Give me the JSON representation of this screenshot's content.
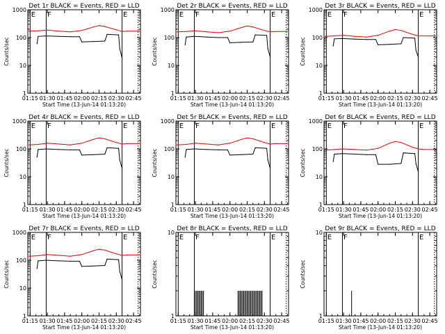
{
  "chart_data": [
    {
      "title": "Det 1r BLACK = Events, RED = LLD",
      "type": "line",
      "xlabel": "Start Time (13-Jun-14 01:13:20)",
      "ylabel": "Counts/sec",
      "y_log": true,
      "ylim": [
        1,
        1000
      ],
      "x_ticks": [
        "01:15",
        "01:30",
        "01:45",
        "02:00",
        "02:15",
        "02:30",
        "02:45"
      ],
      "y_ticks": [
        "1",
        "10",
        "100",
        "1000"
      ],
      "markers": [
        {
          "label": "E",
          "time": "01:15"
        },
        {
          "label": "F",
          "time": "01:29"
        },
        {
          "label": "E",
          "time": "02:35"
        }
      ],
      "dotted_time": "02:49",
      "series": [
        {
          "name": "Events",
          "color": "#000000",
          "x": [
            "01:21",
            "01:22",
            "01:29",
            "01:40",
            "01:50",
            "01:58",
            "02:00",
            "02:10",
            "02:20",
            "02:22",
            "02:32",
            "02:33",
            "02:35"
          ],
          "y": [
            60,
            110,
            115,
            110,
            108,
            108,
            70,
            72,
            75,
            130,
            125,
            40,
            18
          ]
        },
        {
          "name": "LLD",
          "color": "#e00000",
          "x": [
            "01:14",
            "01:22",
            "01:30",
            "01:40",
            "01:50",
            "02:00",
            "02:10",
            "02:15",
            "02:20",
            "02:30",
            "02:35",
            "02:40",
            "02:50"
          ],
          "y": [
            170,
            175,
            185,
            170,
            160,
            180,
            240,
            270,
            250,
            190,
            165,
            170,
            170
          ]
        }
      ]
    },
    {
      "title": "Det 2r BLACK = Events, RED = LLD",
      "type": "line",
      "xlabel": "Start Time (13-Jun-14 01:13:20)",
      "ylabel": "Counts/sec",
      "y_log": true,
      "ylim": [
        1,
        1000
      ],
      "x_ticks": [
        "01:15",
        "01:30",
        "01:45",
        "02:00",
        "02:15",
        "02:30",
        "02:45"
      ],
      "y_ticks": [
        "1",
        "10",
        "100",
        "1000"
      ],
      "markers": [
        {
          "label": "E",
          "time": "01:15"
        },
        {
          "label": "F",
          "time": "01:29"
        },
        {
          "label": "E",
          "time": "02:35"
        }
      ],
      "dotted_time": "02:49",
      "series": [
        {
          "name": "Events",
          "color": "#000000",
          "x": [
            "01:21",
            "01:22",
            "01:29",
            "01:40",
            "01:50",
            "01:58",
            "02:00",
            "02:10",
            "02:20",
            "02:22",
            "02:32",
            "02:33",
            "02:35"
          ],
          "y": [
            55,
            105,
            110,
            105,
            100,
            100,
            65,
            68,
            70,
            125,
            120,
            40,
            20
          ]
        },
        {
          "name": "LLD",
          "color": "#e00000",
          "x": [
            "01:14",
            "01:22",
            "01:30",
            "01:40",
            "01:50",
            "02:00",
            "02:10",
            "02:15",
            "02:20",
            "02:30",
            "02:35",
            "02:40",
            "02:50"
          ],
          "y": [
            160,
            165,
            175,
            160,
            150,
            170,
            230,
            260,
            240,
            180,
            160,
            165,
            165
          ]
        }
      ]
    },
    {
      "title": "Det 3r BLACK = Events, RED = LLD",
      "type": "line",
      "xlabel": "Start Time (13-Jun-14 01:13:20)",
      "ylabel": "Counts/sec",
      "y_log": true,
      "ylim": [
        1,
        1000
      ],
      "x_ticks": [
        "01:15",
        "01:30",
        "01:45",
        "02:00",
        "02:15",
        "02:30",
        "02:45"
      ],
      "y_ticks": [
        "1",
        "10",
        "100",
        "1000"
      ],
      "markers": [
        {
          "label": "E",
          "time": "01:15"
        },
        {
          "label": "F",
          "time": "01:29"
        },
        {
          "label": "E",
          "time": "02:35"
        }
      ],
      "dotted_time": "02:49",
      "series": [
        {
          "name": "Events",
          "color": "#000000",
          "x": [
            "01:21",
            "01:22",
            "01:29",
            "01:40",
            "01:50",
            "01:58",
            "02:00",
            "02:10",
            "02:20",
            "02:22",
            "02:32",
            "02:33",
            "02:35"
          ],
          "y": [
            50,
            90,
            92,
            88,
            85,
            85,
            55,
            57,
            60,
            100,
            95,
            35,
            20
          ]
        },
        {
          "name": "LLD",
          "color": "#e00000",
          "x": [
            "01:14",
            "01:22",
            "01:30",
            "01:40",
            "01:50",
            "02:00",
            "02:10",
            "02:15",
            "02:20",
            "02:30",
            "02:35",
            "02:40",
            "02:50"
          ],
          "y": [
            110,
            115,
            120,
            110,
            105,
            120,
            170,
            195,
            180,
            130,
            115,
            115,
            115
          ]
        }
      ]
    },
    {
      "title": "Det 4r BLACK = Events, RED = LLD",
      "type": "line",
      "xlabel": "Start Time (13-Jun-14 01:13:20)",
      "ylabel": "Counts/sec",
      "y_log": true,
      "ylim": [
        1,
        1000
      ],
      "x_ticks": [
        "01:15",
        "01:30",
        "01:45",
        "02:00",
        "02:15",
        "02:30",
        "02:45"
      ],
      "y_ticks": [
        "1",
        "10",
        "100",
        "1000"
      ],
      "markers": [
        {
          "label": "E",
          "time": "01:15"
        },
        {
          "label": "F",
          "time": "01:29"
        },
        {
          "label": "E",
          "time": "02:35"
        }
      ],
      "dotted_time": "02:49",
      "series": [
        {
          "name": "Events",
          "color": "#000000",
          "x": [
            "01:21",
            "01:22",
            "01:29",
            "01:40",
            "01:50",
            "01:58",
            "02:00",
            "02:10",
            "02:20",
            "02:22",
            "02:32",
            "02:33",
            "02:35"
          ],
          "y": [
            50,
            95,
            100,
            95,
            92,
            92,
            60,
            62,
            65,
            110,
            105,
            40,
            20
          ]
        },
        {
          "name": "LLD",
          "color": "#e00000",
          "x": [
            "01:14",
            "01:22",
            "01:30",
            "01:40",
            "01:50",
            "02:00",
            "02:10",
            "02:15",
            "02:20",
            "02:30",
            "02:35",
            "02:40",
            "02:50"
          ],
          "y": [
            140,
            145,
            160,
            150,
            140,
            160,
            220,
            250,
            230,
            170,
            150,
            155,
            155
          ]
        }
      ]
    },
    {
      "title": "Det 5r BLACK = Events, RED = LLD",
      "type": "line",
      "xlabel": "Start Time (13-Jun-14 01:13:20)",
      "ylabel": "Counts/sec",
      "y_log": true,
      "ylim": [
        1,
        1000
      ],
      "x_ticks": [
        "01:15",
        "01:30",
        "01:45",
        "02:00",
        "02:15",
        "02:30",
        "02:45"
      ],
      "y_ticks": [
        "1",
        "10",
        "100",
        "1000"
      ],
      "markers": [
        {
          "label": "E",
          "time": "01:15"
        },
        {
          "label": "F",
          "time": "01:29"
        },
        {
          "label": "E",
          "time": "02:35"
        }
      ],
      "dotted_time": "02:49",
      "series": [
        {
          "name": "Events",
          "color": "#000000",
          "x": [
            "01:21",
            "01:22",
            "01:29",
            "01:40",
            "01:50",
            "01:58",
            "02:00",
            "02:10",
            "02:20",
            "02:22",
            "02:32",
            "02:33",
            "02:35"
          ],
          "y": [
            50,
            95,
            100,
            95,
            92,
            92,
            60,
            62,
            65,
            110,
            105,
            40,
            20
          ]
        },
        {
          "name": "LLD",
          "color": "#e00000",
          "x": [
            "01:14",
            "01:22",
            "01:30",
            "01:40",
            "01:50",
            "02:00",
            "02:10",
            "02:15",
            "02:20",
            "02:30",
            "02:35",
            "02:40",
            "02:50"
          ],
          "y": [
            140,
            145,
            160,
            150,
            140,
            160,
            220,
            250,
            230,
            170,
            150,
            155,
            155
          ]
        }
      ]
    },
    {
      "title": "Det 6r BLACK = Events, RED = LLD",
      "type": "line",
      "xlabel": "Start Time (13-Jun-14 01:13:20)",
      "ylabel": "Counts/sec",
      "y_log": true,
      "ylim": [
        1,
        1000
      ],
      "x_ticks": [
        "01:15",
        "01:30",
        "01:45",
        "02:00",
        "02:15",
        "02:30",
        "02:45"
      ],
      "y_ticks": [
        "1",
        "10",
        "100",
        "1000"
      ],
      "markers": [
        {
          "label": "E",
          "time": "01:15"
        },
        {
          "label": "F",
          "time": "01:29"
        },
        {
          "label": "E",
          "time": "02:35"
        }
      ],
      "dotted_time": "02:49",
      "series": [
        {
          "name": "Events",
          "color": "#000000",
          "x": [
            "01:21",
            "01:22",
            "01:29",
            "01:40",
            "01:50",
            "01:58",
            "02:00",
            "02:10",
            "02:20",
            "02:22",
            "02:32",
            "02:33",
            "02:35"
          ],
          "y": [
            35,
            65,
            68,
            65,
            62,
            62,
            28,
            28,
            30,
            72,
            68,
            30,
            15
          ]
        },
        {
          "name": "LLD",
          "color": "#e00000",
          "x": [
            "01:14",
            "01:22",
            "01:30",
            "01:40",
            "01:50",
            "02:00",
            "02:10",
            "02:15",
            "02:20",
            "02:30",
            "02:35",
            "02:40",
            "02:50"
          ],
          "y": [
            90,
            95,
            100,
            95,
            90,
            105,
            160,
            185,
            170,
            115,
            100,
            95,
            95
          ]
        }
      ]
    },
    {
      "title": "Det 7r BLACK = Events, RED = LLD",
      "type": "line",
      "xlabel": "Start Time (13-Jun-14 01:13:20)",
      "ylabel": "Counts/sec",
      "y_log": true,
      "ylim": [
        1,
        1000
      ],
      "x_ticks": [
        "01:15",
        "01:30",
        "01:45",
        "02:00",
        "02:15",
        "02:30",
        "02:45"
      ],
      "y_ticks": [
        "1",
        "10",
        "100",
        "1000"
      ],
      "markers": [
        {
          "label": "E",
          "time": "01:15"
        },
        {
          "label": "F",
          "time": "01:29"
        },
        {
          "label": "E",
          "time": "02:35"
        }
      ],
      "dotted_time": "02:49",
      "series": [
        {
          "name": "Events",
          "color": "#000000",
          "x": [
            "01:21",
            "01:22",
            "01:29",
            "01:40",
            "01:50",
            "01:58",
            "02:00",
            "02:10",
            "02:20",
            "02:22",
            "02:32",
            "02:33",
            "02:35"
          ],
          "y": [
            50,
            95,
            100,
            95,
            92,
            92,
            60,
            62,
            65,
            110,
            105,
            40,
            20
          ]
        },
        {
          "name": "LLD",
          "color": "#e00000",
          "x": [
            "01:14",
            "01:22",
            "01:30",
            "01:40",
            "01:50",
            "02:00",
            "02:10",
            "02:15",
            "02:20",
            "02:30",
            "02:35",
            "02:40",
            "02:50"
          ],
          "y": [
            140,
            145,
            160,
            150,
            140,
            160,
            220,
            250,
            230,
            170,
            150,
            155,
            155
          ]
        }
      ]
    },
    {
      "title": "Det 8r BLACK = Events, RED = LLD",
      "type": "bar",
      "xlabel": "Start Time (13-Jun-14 01:13:20)",
      "ylabel": "Counts/sec",
      "y_log": true,
      "ylim": [
        1,
        10
      ],
      "x_ticks": [
        "01:15",
        "01:30",
        "01:45",
        "02:00",
        "02:15",
        "02:30",
        "02:45"
      ],
      "y_ticks": [
        "1",
        "10"
      ],
      "markers": [
        {
          "label": "E",
          "time": "01:15"
        },
        {
          "label": "F",
          "time": "01:29"
        },
        {
          "label": "E",
          "time": "02:35"
        }
      ],
      "dotted_time": "02:49",
      "spikes": {
        "x": [
          "01:29",
          "01:30",
          "01:31",
          "01:32",
          "01:33",
          "01:34",
          "01:35",
          "01:36",
          "01:37",
          "02:07",
          "02:08",
          "02:09",
          "02:10",
          "02:11",
          "02:12",
          "02:13",
          "02:14",
          "02:15",
          "02:16",
          "02:17",
          "02:18",
          "02:19",
          "02:20",
          "02:21",
          "02:22",
          "02:23",
          "02:24",
          "02:25",
          "02:26",
          "02:27",
          "02:28"
        ],
        "y": [
          2,
          2,
          2,
          2,
          2,
          2,
          2,
          2,
          2,
          2,
          2,
          2,
          2,
          2,
          2,
          2,
          2,
          2,
          2,
          2,
          2,
          2,
          2,
          2,
          2,
          2,
          2,
          2,
          2,
          2,
          2
        ]
      }
    },
    {
      "title": "Det 9r BLACK = Events, RED = LLD",
      "type": "bar",
      "xlabel": "Start Time (13-Jun-14 01:13:20)",
      "ylabel": "Counts/sec",
      "y_log": true,
      "ylim": [
        1,
        10
      ],
      "x_ticks": [
        "01:15",
        "01:30",
        "01:45",
        "02:00",
        "02:15",
        "02:30",
        "02:45"
      ],
      "y_ticks": [
        "1",
        "10"
      ],
      "markers": [
        {
          "label": "E",
          "time": "01:15"
        },
        {
          "label": "F",
          "time": "01:29"
        },
        {
          "label": "E",
          "time": "02:35"
        }
      ],
      "dotted_time": "02:49",
      "spikes": {
        "x": [
          "01:37"
        ],
        "y": [
          2
        ]
      }
    }
  ]
}
